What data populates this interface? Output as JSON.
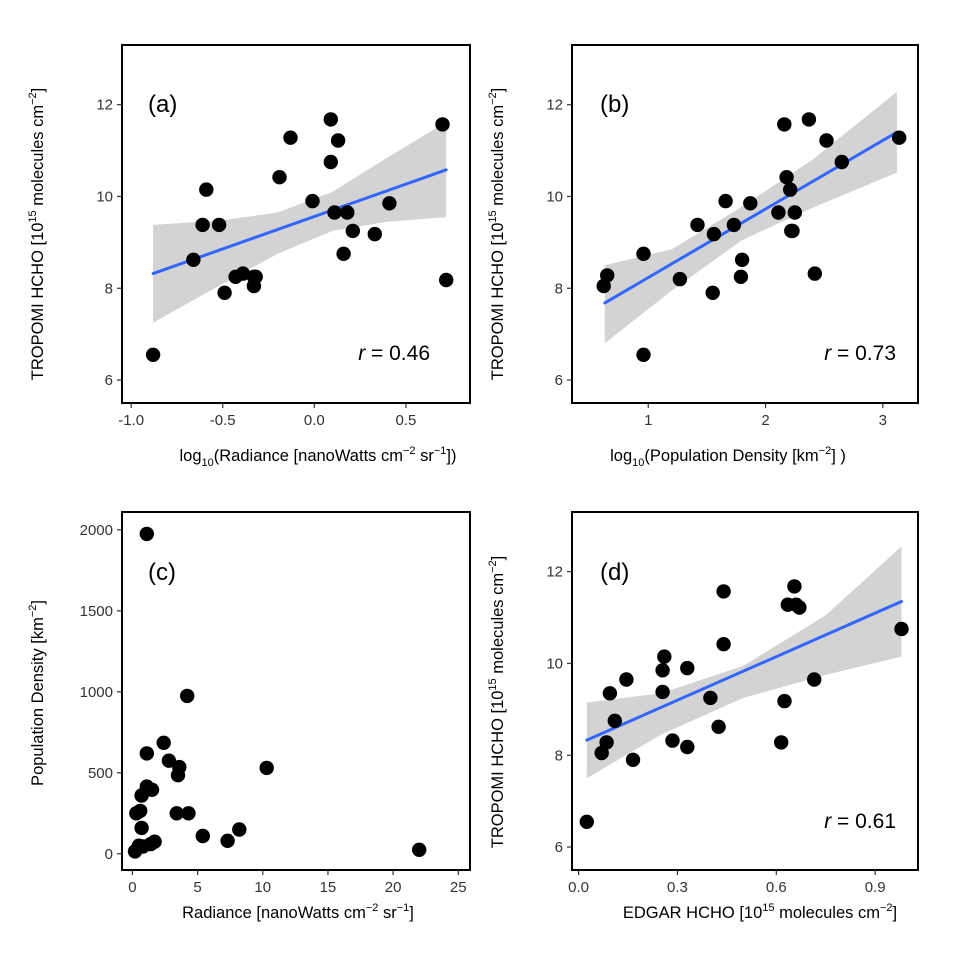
{
  "chart_data": [
    {
      "type": "scatter",
      "panel": "(a)",
      "xlabel": "log10(Radiance [nanoWatts cm−2 sr−1])",
      "ylabel": "TROPOMI HCHO [10^15 molecules cm−2]",
      "xlim": [
        -1.05,
        0.85
      ],
      "ylim": [
        5.5,
        13.3
      ],
      "xticks": [
        -1.0,
        -0.5,
        0.0,
        0.5
      ],
      "xtick_labels": [
        "-1.0",
        "-0.5",
        "0.0",
        "0.5"
      ],
      "yticks": [
        6,
        8,
        10,
        12
      ],
      "ytick_labels": [
        "6",
        "8",
        "10",
        "12"
      ],
      "r_label": "r = 0.46",
      "fit": {
        "x": [
          -0.88,
          0.72
        ],
        "y": [
          8.32,
          10.58
        ]
      },
      "band": {
        "x": [
          -0.88,
          -0.5,
          -0.2,
          0.1,
          0.4,
          0.72
        ],
        "lower": [
          7.25,
          8.1,
          8.75,
          9.25,
          9.45,
          9.55
        ],
        "upper": [
          9.38,
          9.48,
          9.65,
          10.1,
          10.85,
          11.62
        ]
      },
      "points": {
        "x": [
          -0.88,
          -0.66,
          -0.61,
          -0.59,
          -0.52,
          -0.49,
          -0.43,
          -0.39,
          -0.33,
          -0.33,
          -0.32,
          -0.19,
          -0.13,
          -0.01,
          0.09,
          0.09,
          0.11,
          0.13,
          0.16,
          0.18,
          0.21,
          0.33,
          0.41,
          0.7,
          0.72
        ],
        "y": [
          6.55,
          8.62,
          9.38,
          10.15,
          9.38,
          7.9,
          8.25,
          8.32,
          8.05,
          8.25,
          8.25,
          10.42,
          11.28,
          9.9,
          11.68,
          10.75,
          9.65,
          11.22,
          8.75,
          9.65,
          9.25,
          9.18,
          9.85,
          11.57,
          8.18
        ]
      }
    },
    {
      "type": "scatter",
      "panel": "(b)",
      "xlabel": "log10(Population Density [km−2] )",
      "ylabel": "TROPOMI HCHO [10^15 molecules cm−2]",
      "xlim": [
        0.35,
        3.3
      ],
      "ylim": [
        5.5,
        13.3
      ],
      "xticks": [
        1,
        2,
        3
      ],
      "xtick_labels": [
        "1",
        "2",
        "3"
      ],
      "yticks": [
        6,
        8,
        10,
        12
      ],
      "ytick_labels": [
        "6",
        "8",
        "10",
        "12"
      ],
      "r_label": "r = 0.73",
      "fit": {
        "x": [
          0.63,
          3.12
        ],
        "y": [
          7.68,
          11.4
        ]
      },
      "band": {
        "x": [
          0.63,
          1.2,
          1.8,
          2.4,
          3.12
        ],
        "lower": [
          6.8,
          7.95,
          9.05,
          9.75,
          10.52
        ],
        "upper": [
          8.5,
          8.85,
          9.78,
          10.8,
          12.28
        ]
      },
      "points": {
        "x": [
          0.62,
          0.65,
          0.96,
          0.96,
          1.27,
          1.42,
          1.56,
          1.55,
          1.66,
          1.73,
          1.79,
          1.8,
          1.87,
          2.11,
          2.16,
          2.18,
          2.21,
          2.22,
          2.23,
          2.25,
          2.37,
          2.42,
          2.52,
          2.65,
          3.14
        ],
        "y": [
          8.05,
          8.28,
          8.75,
          6.55,
          8.2,
          9.38,
          9.18,
          7.9,
          9.9,
          9.38,
          8.25,
          8.62,
          9.85,
          9.65,
          11.57,
          10.42,
          10.15,
          9.25,
          9.25,
          9.65,
          11.68,
          8.32,
          11.22,
          10.75,
          11.28
        ]
      }
    },
    {
      "type": "scatter",
      "panel": "(c)",
      "xlabel": "Radiance [nanoWatts cm−2 sr−1]",
      "ylabel": "Population Density [km−2]",
      "xlim": [
        -0.8,
        25.9
      ],
      "ylim": [
        -100,
        2110
      ],
      "xticks": [
        0,
        5,
        10,
        15,
        20,
        25
      ],
      "xtick_labels": [
        "0",
        "5",
        "10",
        "15",
        "20",
        "25"
      ],
      "yticks": [
        0,
        500,
        1000,
        1500,
        2000
      ],
      "ytick_labels": [
        "0",
        "500",
        "1000",
        "1500",
        "2000"
      ],
      "points": {
        "x": [
          0.2,
          0.3,
          0.5,
          0.6,
          0.7,
          0.7,
          0.8,
          1.1,
          1.1,
          1.1,
          1.4,
          1.5,
          1.7,
          2.4,
          2.8,
          3.4,
          3.5,
          3.6,
          4.2,
          4.3,
          5.4,
          7.3,
          8.2,
          10.3,
          22.0
        ],
        "y": [
          15,
          250,
          50,
          265,
          160,
          360,
          45,
          415,
          620,
          1975,
          60,
          395,
          75,
          685,
          575,
          250,
          485,
          535,
          975,
          250,
          110,
          80,
          150,
          530,
          25
        ]
      }
    },
    {
      "type": "scatter",
      "panel": "(d)",
      "xlabel": "EDGAR HCHO [10^15 molecules cm−2]",
      "ylabel": "TROPOMI HCHO [10^15 molecules cm−2]",
      "xlim": [
        -0.02,
        1.03
      ],
      "ylim": [
        5.5,
        13.3
      ],
      "xticks": [
        0.0,
        0.3,
        0.6,
        0.9
      ],
      "xtick_labels": [
        "0.0",
        "0.3",
        "0.6",
        "0.9"
      ],
      "yticks": [
        6,
        8,
        10,
        12
      ],
      "ytick_labels": [
        "6",
        "8",
        "10",
        "12"
      ],
      "r_label": "r = 0.61",
      "fit": {
        "x": [
          0.025,
          0.98
        ],
        "y": [
          8.33,
          11.35
        ]
      },
      "band": {
        "x": [
          0.025,
          0.25,
          0.5,
          0.75,
          0.98
        ],
        "lower": [
          7.5,
          8.45,
          9.25,
          9.75,
          10.15
        ],
        "upper": [
          9.15,
          9.35,
          9.95,
          11.05,
          12.55
        ]
      },
      "points": {
        "x": [
          0.025,
          0.07,
          0.085,
          0.095,
          0.11,
          0.145,
          0.165,
          0.255,
          0.26,
          0.255,
          0.285,
          0.33,
          0.33,
          0.4,
          0.425,
          0.44,
          0.44,
          0.615,
          0.625,
          0.635,
          0.655,
          0.66,
          0.67,
          0.715,
          0.98
        ],
        "y": [
          6.55,
          8.05,
          8.28,
          9.35,
          8.75,
          9.65,
          7.9,
          9.85,
          10.15,
          9.38,
          8.32,
          9.9,
          8.18,
          9.25,
          8.62,
          11.57,
          10.42,
          8.28,
          9.18,
          11.28,
          11.68,
          11.28,
          11.22,
          9.65,
          10.75
        ]
      }
    }
  ]
}
